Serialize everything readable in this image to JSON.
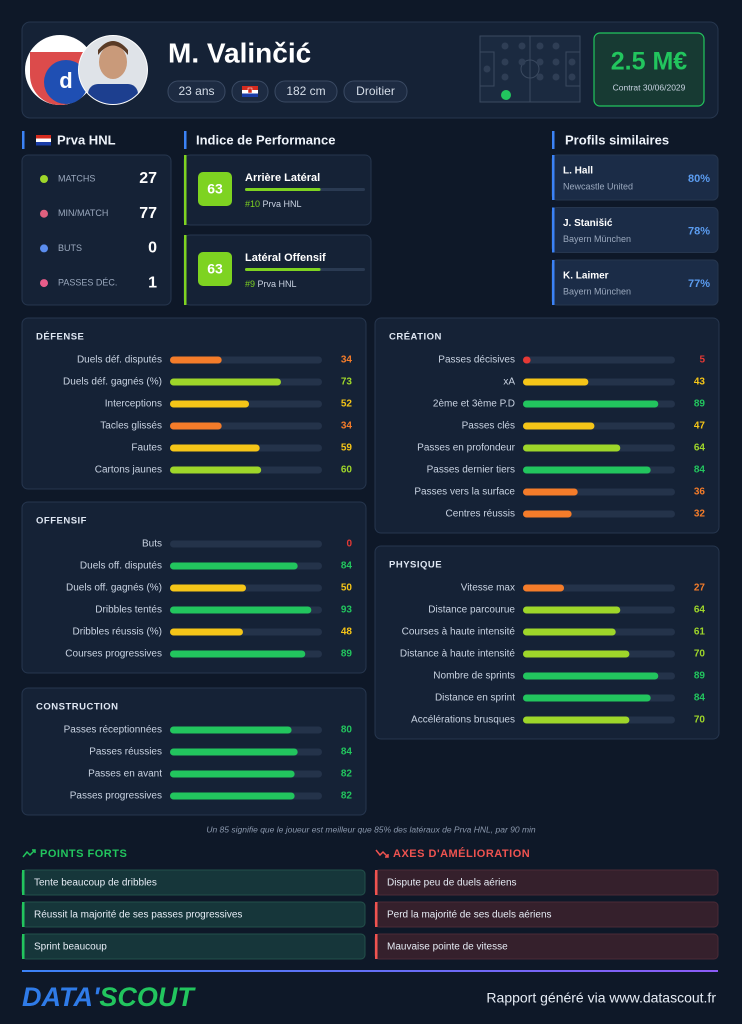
{
  "header": {
    "name": "M. Valinčić",
    "tags": [
      "23 ans",
      "182 cm",
      "Droitier"
    ],
    "market_value": "2.5 M€",
    "contract": "Contrat 30/06/2029"
  },
  "league_stats": {
    "title": "Prva HNL",
    "items": [
      {
        "label": "MATCHS",
        "value": 27
      },
      {
        "label": "MIN/MATCH",
        "value": 77
      },
      {
        "label": "BUTS",
        "value": 0
      },
      {
        "label": "PASSES DÉC.",
        "value": 1
      }
    ]
  },
  "performance": {
    "title": "Indice de Performance",
    "items": [
      {
        "score": 63,
        "role": "Arrière Latéral",
        "rank": "#10",
        "league": "Prva HNL"
      },
      {
        "score": 63,
        "role": "Latéral Offensif",
        "rank": "#9",
        "league": "Prva HNL"
      }
    ]
  },
  "similar": {
    "title": "Profils similaires",
    "items": [
      {
        "name": "L. Hall",
        "club": "Newcastle United",
        "score": "80%"
      },
      {
        "name": "J. Stanišić",
        "club": "Bayern München",
        "score": "78%"
      },
      {
        "name": "K. Laimer",
        "club": "Bayern München",
        "score": "77%"
      }
    ]
  },
  "sections": [
    {
      "title": "DÉFENSE",
      "metrics": [
        {
          "label": "Duels déf. disputés",
          "value": 34
        },
        {
          "label": "Duels déf. gagnés (%)",
          "value": 73
        },
        {
          "label": "Interceptions",
          "value": 52
        },
        {
          "label": "Tacles glissés",
          "value": 34
        },
        {
          "label": "Fautes",
          "value": 59
        },
        {
          "label": "Cartons jaunes",
          "value": 60
        }
      ]
    },
    {
      "title": "OFFENSIF",
      "metrics": [
        {
          "label": "Buts",
          "value": 0
        },
        {
          "label": "Duels off. disputés",
          "value": 84
        },
        {
          "label": "Duels off. gagnés (%)",
          "value": 50
        },
        {
          "label": "Dribbles tentés",
          "value": 93
        },
        {
          "label": "Dribbles réussis (%)",
          "value": 48
        },
        {
          "label": "Courses progressives",
          "value": 89
        }
      ]
    },
    {
      "title": "CONSTRUCTION",
      "metrics": [
        {
          "label": "Passes réceptionnées",
          "value": 80
        },
        {
          "label": "Passes réussies",
          "value": 84
        },
        {
          "label": "Passes en avant",
          "value": 82
        },
        {
          "label": "Passes progressives",
          "value": 82
        }
      ]
    },
    {
      "title": "CRÉATION",
      "metrics": [
        {
          "label": "Passes décisives",
          "value": 5
        },
        {
          "label": "xA",
          "value": 43
        },
        {
          "label": "2ème et 3ème P.D",
          "value": 89
        },
        {
          "label": "Passes clés",
          "value": 47
        },
        {
          "label": "Passes en profondeur",
          "value": 64
        },
        {
          "label": "Passes dernier tiers",
          "value": 84
        },
        {
          "label": "Passes vers la surface",
          "value": 36
        },
        {
          "label": "Centres réussis",
          "value": 32
        }
      ]
    },
    {
      "title": "PHYSIQUE",
      "metrics": [
        {
          "label": "Vitesse max",
          "value": 27
        },
        {
          "label": "Distance parcourue",
          "value": 64
        },
        {
          "label": "Courses à haute intensité",
          "value": 61
        },
        {
          "label": "Distance à haute intensité",
          "value": 70
        },
        {
          "label": "Nombre de sprints",
          "value": 89
        },
        {
          "label": "Distance en sprint",
          "value": 84
        },
        {
          "label": "Accélérations brusques",
          "value": 70
        }
      ]
    }
  ],
  "note": "Un 85 signifie que le joueur est meilleur que 85% des latéraux de Prva HNL, par 90 min",
  "strengths": {
    "title": "POINTS FORTS",
    "items": [
      "Tente beaucoup de dribbles",
      "Réussit la majorité de ses passes progressives",
      "Sprint beaucoup"
    ]
  },
  "improvements": {
    "title": "AXES D'AMÉLIORATION",
    "items": [
      "Dispute peu de duels aériens",
      "Perd la majorité de ses duels aériens",
      "Mauvaise pointe de vitesse"
    ]
  },
  "footer": {
    "logo": [
      "DATA'",
      "SCOUT"
    ],
    "text": "Rapport généré via www.datascout.fr"
  }
}
